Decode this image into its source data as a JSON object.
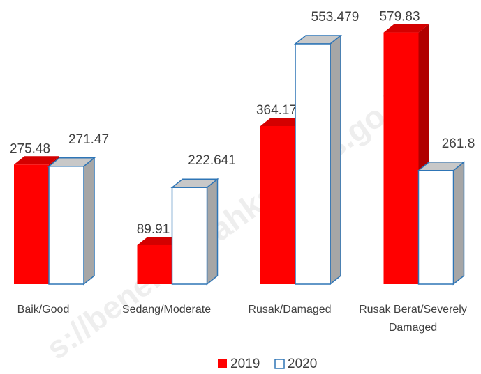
{
  "chart_data": {
    "type": "bar3d",
    "categories": [
      "Baik/Good",
      "Sedang/Moderate",
      "Rusak/Damaged",
      "Rusak Berat/Severely Damaged"
    ],
    "series": [
      {
        "name": "2019",
        "color": "#ff0000",
        "values": [
          275.48,
          89.91,
          364.17,
          579.83
        ]
      },
      {
        "name": "2020",
        "color": "#ffffff",
        "values": [
          271.47,
          222.641,
          553.479,
          261.8
        ]
      }
    ],
    "ylim": [
      0,
      600
    ],
    "watermark": "s://benermeriahkab.bps.go.id"
  }
}
